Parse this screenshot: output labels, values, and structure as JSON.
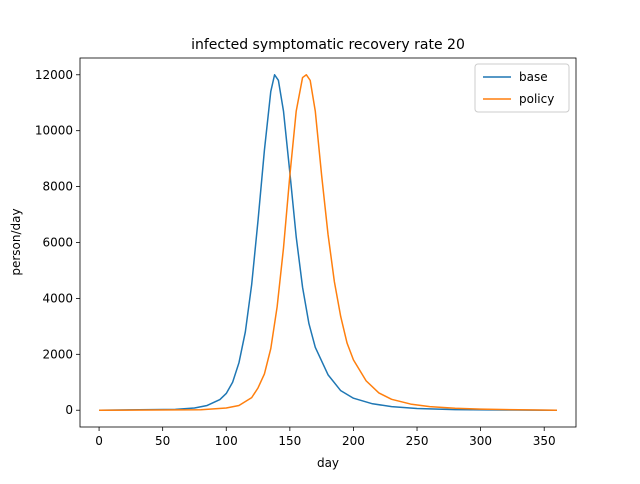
{
  "chart_data": {
    "type": "line",
    "title": "infected symptomatic recovery rate 20",
    "xlabel": "day",
    "ylabel": "person/day",
    "xlim": [
      -15,
      375
    ],
    "ylim": [
      -600,
      12600
    ],
    "xticks": [
      0,
      50,
      100,
      150,
      200,
      250,
      300,
      350
    ],
    "yticks": [
      0,
      2000,
      4000,
      6000,
      8000,
      10000,
      12000
    ],
    "grid": false,
    "legend_position": "top-right",
    "series": [
      {
        "name": "base",
        "color": "#1f77b4",
        "x": [
          0,
          60,
          75,
          85,
          95,
          100,
          105,
          110,
          115,
          120,
          125,
          130,
          135,
          138,
          141,
          145,
          150,
          155,
          160,
          165,
          170,
          180,
          190,
          200,
          215,
          230,
          250,
          280,
          320,
          360
        ],
        "y": [
          0,
          30,
          80,
          170,
          380,
          600,
          1000,
          1700,
          2800,
          4500,
          6800,
          9300,
          11400,
          12000,
          11800,
          10700,
          8500,
          6200,
          4400,
          3100,
          2250,
          1270,
          700,
          430,
          230,
          130,
          60,
          20,
          8,
          0
        ]
      },
      {
        "name": "policy",
        "color": "#ff7f0e",
        "x": [
          0,
          80,
          100,
          110,
          120,
          125,
          130,
          135,
          140,
          145,
          150,
          155,
          160,
          163,
          166,
          170,
          175,
          180,
          185,
          190,
          195,
          200,
          210,
          220,
          230,
          245,
          260,
          280,
          300,
          330,
          360
        ],
        "y": [
          0,
          15,
          80,
          170,
          450,
          800,
          1300,
          2200,
          3700,
          5800,
          8400,
          10700,
          11900,
          12000,
          11800,
          10700,
          8400,
          6300,
          4600,
          3350,
          2400,
          1800,
          1050,
          620,
          390,
          220,
          130,
          70,
          40,
          15,
          0
        ]
      }
    ]
  }
}
